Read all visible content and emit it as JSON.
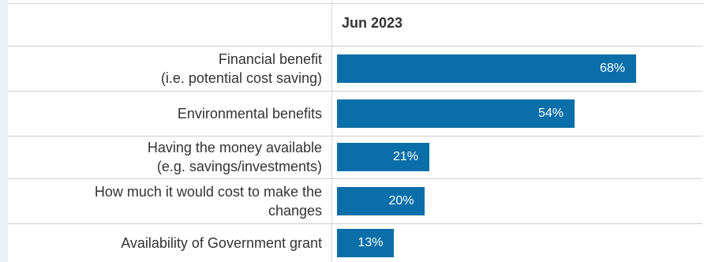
{
  "column_header": "Jun 2023",
  "chart_data": {
    "type": "bar",
    "orientation": "horizontal",
    "categories": [
      [
        "Financial benefit",
        "(i.e. potential cost saving)"
      ],
      [
        "Environmental benefits"
      ],
      [
        "Having the money available",
        "(e.g. savings/investments)"
      ],
      [
        "How much it would cost to make the",
        "changes"
      ],
      [
        "Availability of Government grant"
      ]
    ],
    "values": [
      68,
      54,
      21,
      20,
      13
    ],
    "value_labels": [
      "68%",
      "54%",
      "21%",
      "20%",
      "13%"
    ],
    "unit": "%",
    "xlim": [
      0,
      100
    ],
    "bar_color": "#0a6fa8",
    "grid": false
  }
}
